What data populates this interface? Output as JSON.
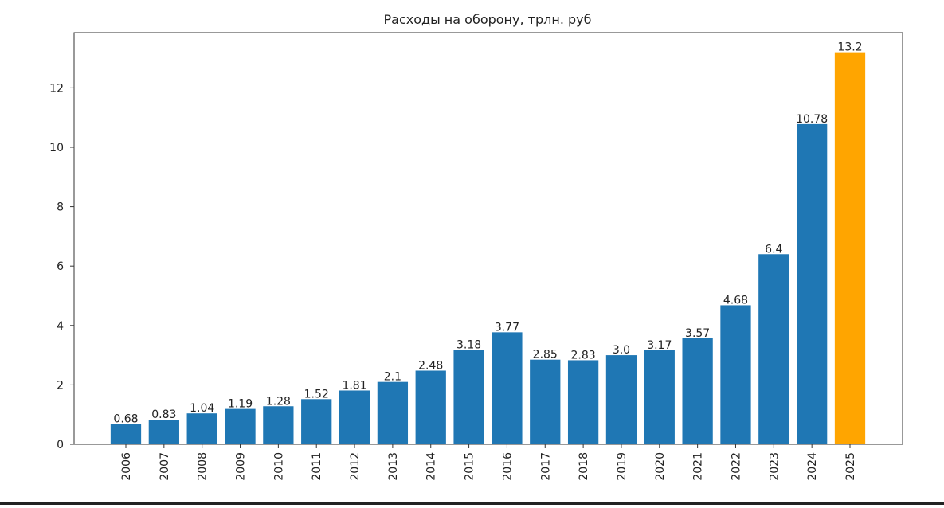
{
  "chart_data": {
    "type": "bar",
    "title": "Расходы на оборону, трлн. руб",
    "xlabel": "",
    "ylabel": "",
    "categories": [
      "2006",
      "2007",
      "2008",
      "2009",
      "2010",
      "2011",
      "2012",
      "2013",
      "2014",
      "2015",
      "2016",
      "2017",
      "2018",
      "2019",
      "2020",
      "2021",
      "2022",
      "2023",
      "2024",
      "2025"
    ],
    "values": [
      0.68,
      0.83,
      1.04,
      1.19,
      1.28,
      1.52,
      1.81,
      2.1,
      2.48,
      3.18,
      3.77,
      2.85,
      2.83,
      3.0,
      3.17,
      3.57,
      4.68,
      6.4,
      10.78,
      13.2
    ],
    "value_labels": [
      "0.68",
      "0.83",
      "1.04",
      "1.19",
      "1.28",
      "1.52",
      "1.81",
      "2.1",
      "2.48",
      "3.18",
      "3.77",
      "2.85",
      "2.83",
      "3.0",
      "3.17",
      "3.57",
      "4.68",
      "6.4",
      "10.78",
      "13.2"
    ],
    "ylim": [
      0,
      13.86
    ],
    "yticks": [
      0,
      2,
      4,
      6,
      8,
      10,
      12
    ],
    "grid": false,
    "x_tick_rotation": "vertical",
    "bar_color": "#1f77b4",
    "highlight_color": "#ffa500",
    "highlight_categories": [
      "2025"
    ]
  }
}
